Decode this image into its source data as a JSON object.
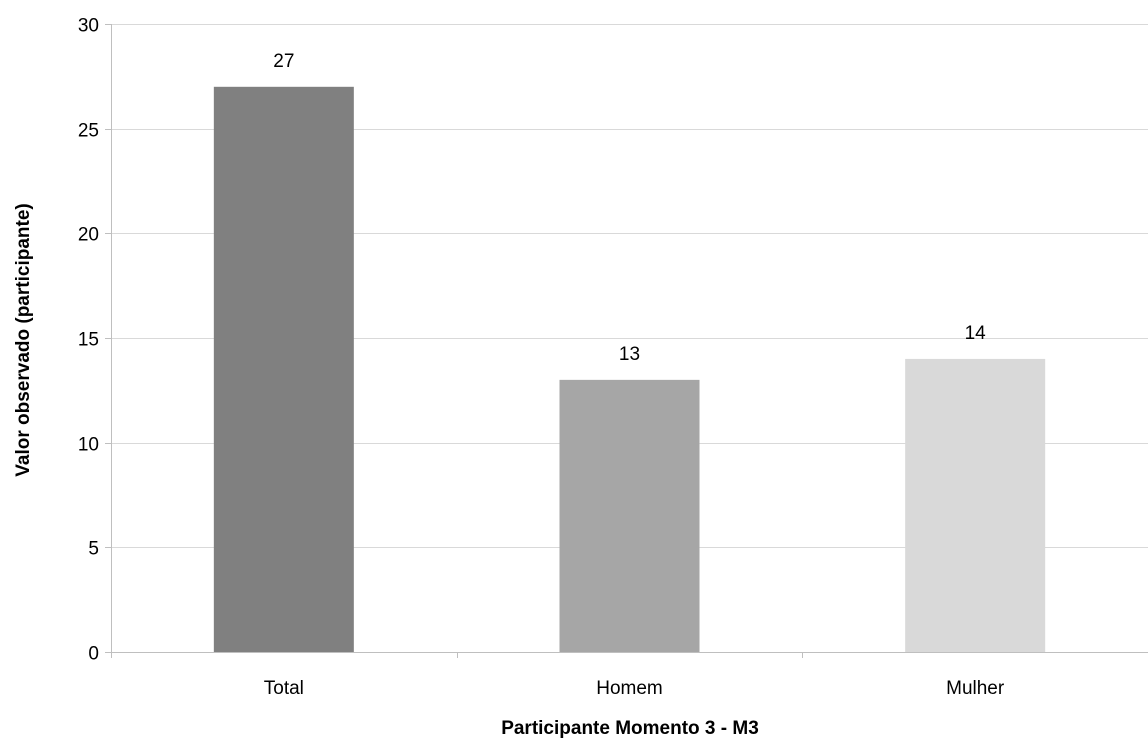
{
  "chart_data": {
    "type": "bar",
    "categories": [
      "Total",
      "Homem",
      "Mulher"
    ],
    "values": [
      27,
      13,
      14
    ],
    "bar_colors": [
      "#808080",
      "#a6a6a6",
      "#d9d9d9"
    ],
    "data_labels": [
      "27",
      "13",
      "14"
    ],
    "xlabel": "Participante Momento 3 - M3",
    "ylabel": "Valor observado (participante)",
    "ylim": [
      0,
      30
    ],
    "yticks": [
      0,
      5,
      10,
      15,
      20,
      25,
      30
    ],
    "ytick_labels": [
      "0",
      "5",
      "10",
      "15",
      "20",
      "25",
      "30"
    ],
    "grid": true,
    "gridline_color": "#d9d9d9",
    "axis_color": "#bfbfbf",
    "legend": false
  }
}
